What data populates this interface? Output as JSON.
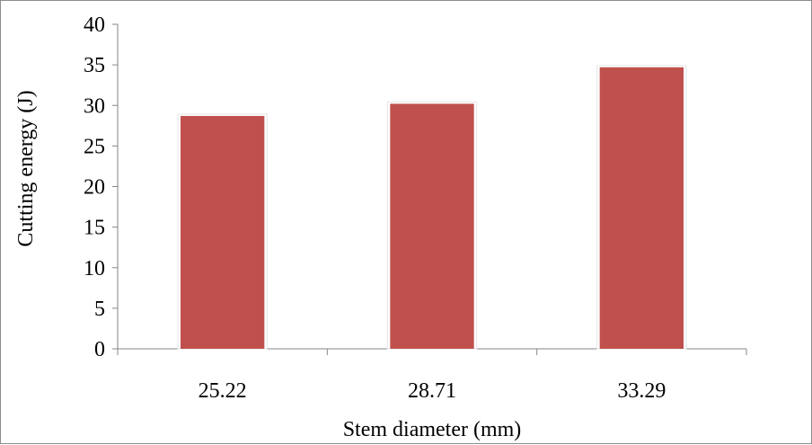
{
  "chart_data": {
    "type": "bar",
    "categories": [
      "25.22",
      "28.71",
      "33.29"
    ],
    "series": [
      {
        "values": [
          28.7,
          30.2,
          34.7
        ]
      }
    ],
    "title": "",
    "xlabel": "Stem diameter (mm)",
    "ylabel": "Cutting energy (J)",
    "ylim": [
      0,
      40
    ],
    "yticks": [
      "0",
      "5",
      "10",
      "15",
      "20",
      "25",
      "30",
      "35",
      "40"
    ],
    "grid": false,
    "legend": "none",
    "bar_color": "#c0504d",
    "axis_color": "#868686"
  }
}
